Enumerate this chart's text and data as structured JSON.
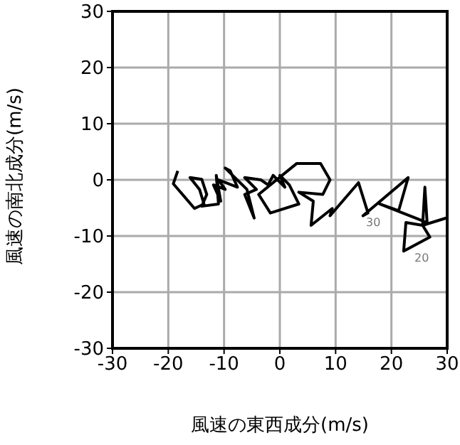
{
  "chart_data": {
    "type": "line",
    "xlabel": "風速の東西成分(m/s)",
    "ylabel": "風速の南北成分(m/s)",
    "xlim": [
      -30,
      30
    ],
    "ylim": [
      -30,
      30
    ],
    "xticks": [
      -30,
      -20,
      -10,
      0,
      10,
      20,
      30
    ],
    "yticks": [
      -30,
      -20,
      -10,
      0,
      10,
      20,
      30
    ],
    "grid": true,
    "marker": "none",
    "line_style": "solid",
    "series": [
      {
        "color": "#000000",
        "x": [
          -18.3,
          -19.1,
          -15.3,
          -13.6,
          -14.4,
          -16.1,
          -14.0,
          -13.1,
          -14.0,
          -11.0,
          -11.4,
          -10.6,
          -11.9,
          -9.8,
          -11.0,
          -7.6,
          -8.9,
          -9.8,
          -5.9,
          -4.6,
          -6.3,
          -4.2,
          -6.3,
          -3.4,
          -2.1,
          -1.2,
          0.9,
          0,
          1.7,
          3.4,
          -1.7,
          -3.8,
          3.0,
          7.3,
          9.0,
          7.7,
          3.4,
          6.0,
          5.6,
          9.4,
          9.0,
          14.1,
          15.8,
          14.9,
          23.0,
          21.3,
          17.9,
          26.4,
          26.0,
          25.6,
          22.6,
          22.2,
          26.9,
          25.6,
          29.8
        ],
        "values": [
          1.6,
          -0.7,
          -5.1,
          -4.3,
          -1.7,
          0.4,
          0.1,
          -2.6,
          -4.7,
          -4.3,
          0.8,
          -3.8,
          -0.9,
          -1.7,
          0,
          -1.3,
          1.6,
          2.1,
          -1.7,
          -6.8,
          -2.6,
          -1.7,
          0.4,
          0,
          -0.9,
          0.8,
          -1.3,
          0.8,
          -0.9,
          -4.3,
          -5.9,
          -2.6,
          2.9,
          2.9,
          0,
          -2.6,
          -2.2,
          -3.8,
          -8.1,
          -5.1,
          -6.4,
          -0.5,
          -5.9,
          -6.4,
          0.4,
          -5.5,
          -4.3,
          -7.6,
          -1.3,
          -8.1,
          -7.6,
          -12.7,
          -10.2,
          -8.1,
          -6.8
        ]
      }
    ],
    "annotations": [
      "30",
      "20"
    ]
  }
}
